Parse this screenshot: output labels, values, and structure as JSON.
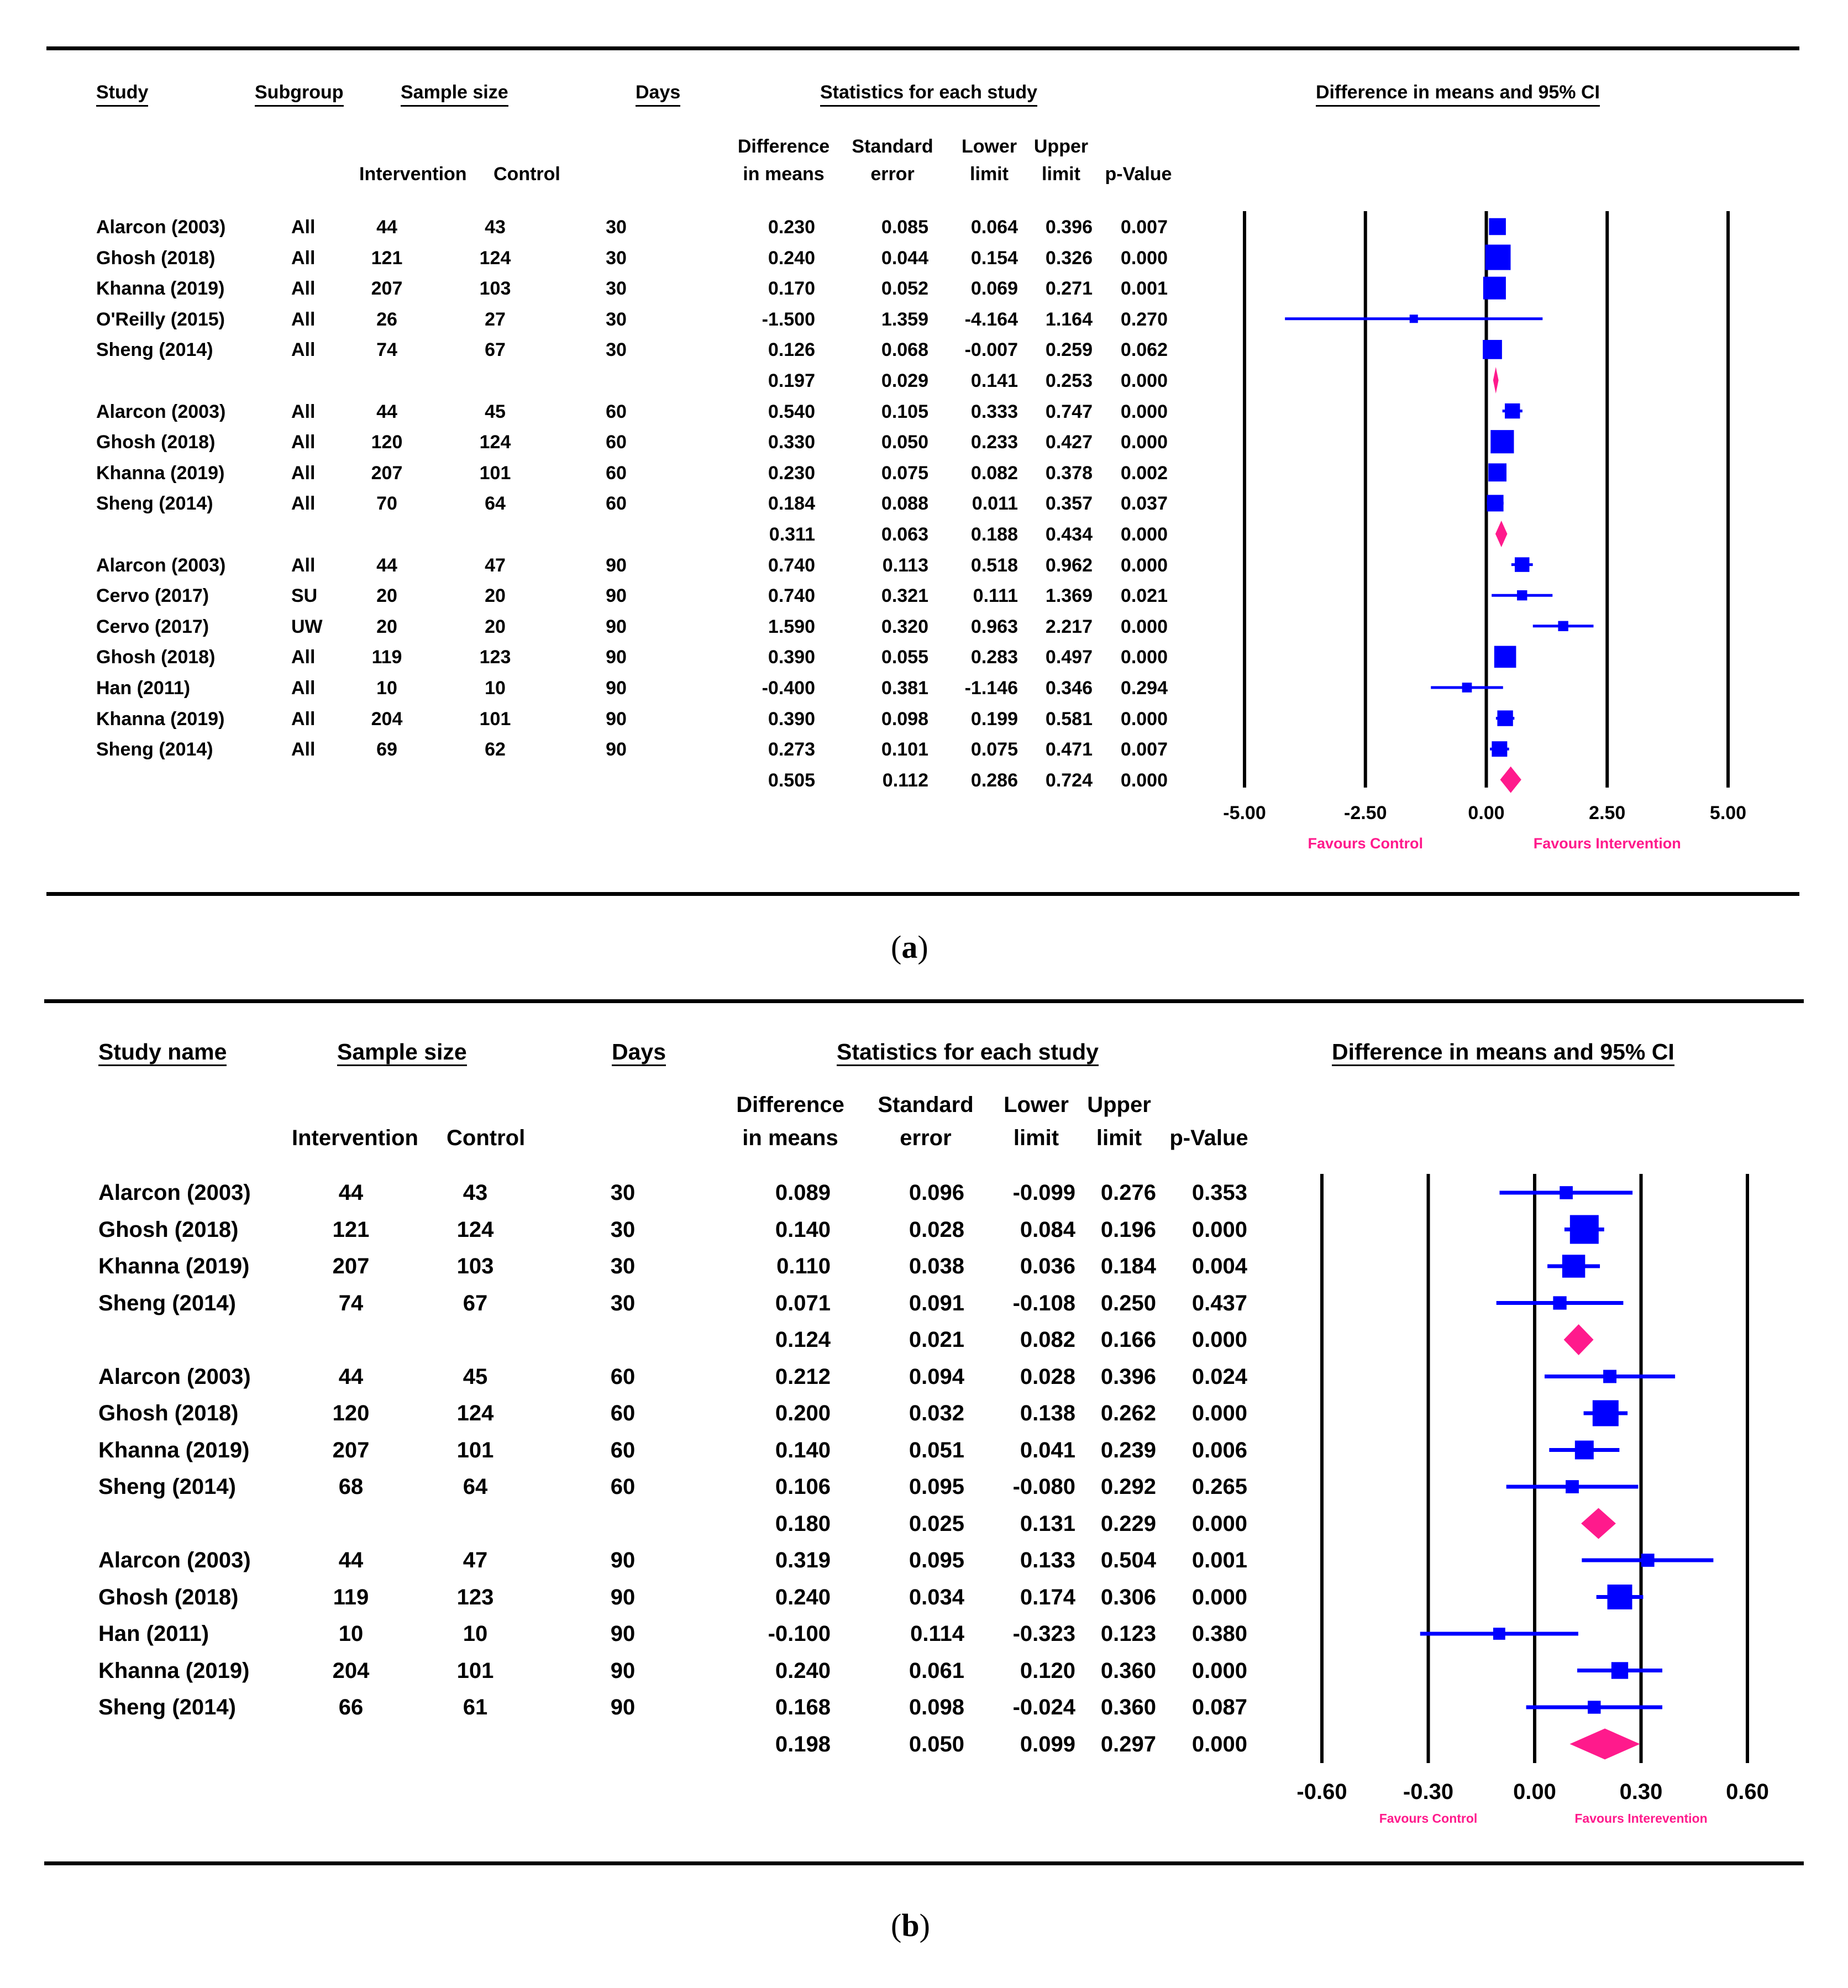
{
  "chart_data": [
    {
      "type": "forest",
      "panel": "a",
      "caption_letter": "a",
      "headers": {
        "study": "Study",
        "subgroup": "Subgroup",
        "sample_size": "Sample size",
        "days": "Days",
        "stats": "Statistics for each study",
        "plot": "Difference in means and 95% CI",
        "intervention": "Intervention",
        "control": "Control",
        "diff": [
          "Difference",
          "in means"
        ],
        "se": [
          "Standard",
          "error"
        ],
        "lower": [
          "Lower",
          "limit"
        ],
        "upper": [
          "Upper",
          "limit"
        ],
        "p": "p-Value"
      },
      "xlim": [
        -5.0,
        5.0
      ],
      "ticks": [
        "-5.00",
        "-2.50",
        "0.00",
        "2.50",
        "5.00"
      ],
      "tick_values": [
        -5.0,
        -2.5,
        0.0,
        2.5,
        5.0
      ],
      "favours_left": "Favours Control",
      "favours_right": "Favours Intervention",
      "rows": [
        {
          "study": "Alarcon (2003)",
          "subgroup": "All",
          "intervention": "44",
          "control": "43",
          "days": "30",
          "diff": "0.230",
          "se": "0.085",
          "lower": "0.064",
          "upper": "0.396",
          "p": "0.007",
          "kind": "study"
        },
        {
          "study": "Ghosh (2018)",
          "subgroup": "All",
          "intervention": "121",
          "control": "124",
          "days": "30",
          "diff": "0.240",
          "se": "0.044",
          "lower": "0.154",
          "upper": "0.326",
          "p": "0.000",
          "kind": "study"
        },
        {
          "study": "Khanna (2019)",
          "subgroup": "All",
          "intervention": "207",
          "control": "103",
          "days": "30",
          "diff": "0.170",
          "se": "0.052",
          "lower": "0.069",
          "upper": "0.271",
          "p": "0.001",
          "kind": "study"
        },
        {
          "study": "O'Reilly (2015)",
          "subgroup": "All",
          "intervention": "26",
          "control": "27",
          "days": "30",
          "diff": "-1.500",
          "se": "1.359",
          "lower": "-4.164",
          "upper": "1.164",
          "p": "0.270",
          "kind": "study"
        },
        {
          "study": "Sheng (2014)",
          "subgroup": "All",
          "intervention": "74",
          "control": "67",
          "days": "30",
          "diff": "0.126",
          "se": "0.068",
          "lower": "-0.007",
          "upper": "0.259",
          "p": "0.062",
          "kind": "study"
        },
        {
          "study": "",
          "subgroup": "",
          "intervention": "",
          "control": "",
          "days": "",
          "diff": "0.197",
          "se": "0.029",
          "lower": "0.141",
          "upper": "0.253",
          "p": "0.000",
          "kind": "pooled"
        },
        {
          "study": "Alarcon (2003)",
          "subgroup": "All",
          "intervention": "44",
          "control": "45",
          "days": "60",
          "diff": "0.540",
          "se": "0.105",
          "lower": "0.333",
          "upper": "0.747",
          "p": "0.000",
          "kind": "study"
        },
        {
          "study": "Ghosh (2018)",
          "subgroup": "All",
          "intervention": "120",
          "control": "124",
          "days": "60",
          "diff": "0.330",
          "se": "0.050",
          "lower": "0.233",
          "upper": "0.427",
          "p": "0.000",
          "kind": "study"
        },
        {
          "study": "Khanna (2019)",
          "subgroup": "All",
          "intervention": "207",
          "control": "101",
          "days": "60",
          "diff": "0.230",
          "se": "0.075",
          "lower": "0.082",
          "upper": "0.378",
          "p": "0.002",
          "kind": "study"
        },
        {
          "study": "Sheng (2014)",
          "subgroup": "All",
          "intervention": "70",
          "control": "64",
          "days": "60",
          "diff": "0.184",
          "se": "0.088",
          "lower": "0.011",
          "upper": "0.357",
          "p": "0.037",
          "kind": "study"
        },
        {
          "study": "",
          "subgroup": "",
          "intervention": "",
          "control": "",
          "days": "",
          "diff": "0.311",
          "se": "0.063",
          "lower": "0.188",
          "upper": "0.434",
          "p": "0.000",
          "kind": "pooled"
        },
        {
          "study": "Alarcon (2003)",
          "subgroup": "All",
          "intervention": "44",
          "control": "47",
          "days": "90",
          "diff": "0.740",
          "se": "0.113",
          "lower": "0.518",
          "upper": "0.962",
          "p": "0.000",
          "kind": "study"
        },
        {
          "study": "Cervo (2017)",
          "subgroup": "SU",
          "intervention": "20",
          "control": "20",
          "days": "90",
          "diff": "0.740",
          "se": "0.321",
          "lower": "0.111",
          "upper": "1.369",
          "p": "0.021",
          "kind": "study"
        },
        {
          "study": "Cervo (2017)",
          "subgroup": "UW",
          "intervention": "20",
          "control": "20",
          "days": "90",
          "diff": "1.590",
          "se": "0.320",
          "lower": "0.963",
          "upper": "2.217",
          "p": "0.000",
          "kind": "study"
        },
        {
          "study": "Ghosh (2018)",
          "subgroup": "All",
          "intervention": "119",
          "control": "123",
          "days": "90",
          "diff": "0.390",
          "se": "0.055",
          "lower": "0.283",
          "upper": "0.497",
          "p": "0.000",
          "kind": "study"
        },
        {
          "study": "Han (2011)",
          "subgroup": "All",
          "intervention": "10",
          "control": "10",
          "days": "90",
          "diff": "-0.400",
          "se": "0.381",
          "lower": "-1.146",
          "upper": "0.346",
          "p": "0.294",
          "kind": "study"
        },
        {
          "study": "Khanna (2019)",
          "subgroup": "All",
          "intervention": "204",
          "control": "101",
          "days": "90",
          "diff": "0.390",
          "se": "0.098",
          "lower": "0.199",
          "upper": "0.581",
          "p": "0.000",
          "kind": "study"
        },
        {
          "study": "Sheng (2014)",
          "subgroup": "All",
          "intervention": "69",
          "control": "62",
          "days": "90",
          "diff": "0.273",
          "se": "0.101",
          "lower": "0.075",
          "upper": "0.471",
          "p": "0.007",
          "kind": "study"
        },
        {
          "study": "",
          "subgroup": "",
          "intervention": "",
          "control": "",
          "days": "",
          "diff": "0.505",
          "se": "0.112",
          "lower": "0.286",
          "upper": "0.724",
          "p": "0.000",
          "kind": "pooled"
        }
      ]
    },
    {
      "type": "forest",
      "panel": "b",
      "caption_letter": "b",
      "headers": {
        "study": "Study name",
        "sample_size": "Sample size",
        "days": "Days",
        "stats": "Statistics for each study",
        "plot": "Difference in means and 95% CI",
        "intervention": "Intervention",
        "control": "Control",
        "diff": [
          "Difference",
          "in means"
        ],
        "se": [
          "Standard",
          "error"
        ],
        "lower": [
          "Lower",
          "limit"
        ],
        "upper": [
          "Upper",
          "limit"
        ],
        "p": "p-Value"
      },
      "xlim": [
        -0.6,
        0.6
      ],
      "ticks": [
        "-0.60",
        "-0.30",
        "0.00",
        "0.30",
        "0.60"
      ],
      "tick_values": [
        -0.6,
        -0.3,
        0.0,
        0.3,
        0.6
      ],
      "favours_left": "Favours Control",
      "favours_right": "Favours Interevention",
      "rows": [
        {
          "study": "Alarcon (2003)",
          "intervention": "44",
          "control": "43",
          "days": "30",
          "diff": "0.089",
          "se": "0.096",
          "lower": "-0.099",
          "upper": "0.276",
          "p": "0.353",
          "kind": "study"
        },
        {
          "study": "Ghosh (2018)",
          "intervention": "121",
          "control": "124",
          "days": "30",
          "diff": "0.140",
          "se": "0.028",
          "lower": "0.084",
          "upper": "0.196",
          "p": "0.000",
          "kind": "study"
        },
        {
          "study": "Khanna (2019)",
          "intervention": "207",
          "control": "103",
          "days": "30",
          "diff": "0.110",
          "se": "0.038",
          "lower": "0.036",
          "upper": "0.184",
          "p": "0.004",
          "kind": "study"
        },
        {
          "study": "Sheng (2014)",
          "intervention": "74",
          "control": "67",
          "days": "30",
          "diff": "0.071",
          "se": "0.091",
          "lower": "-0.108",
          "upper": "0.250",
          "p": "0.437",
          "kind": "study"
        },
        {
          "study": "",
          "intervention": "",
          "control": "",
          "days": "",
          "diff": "0.124",
          "se": "0.021",
          "lower": "0.082",
          "upper": "0.166",
          "p": "0.000",
          "kind": "pooled"
        },
        {
          "study": "Alarcon (2003)",
          "intervention": "44",
          "control": "45",
          "days": "60",
          "diff": "0.212",
          "se": "0.094",
          "lower": "0.028",
          "upper": "0.396",
          "p": "0.024",
          "kind": "study"
        },
        {
          "study": "Ghosh (2018)",
          "intervention": "120",
          "control": "124",
          "days": "60",
          "diff": "0.200",
          "se": "0.032",
          "lower": "0.138",
          "upper": "0.262",
          "p": "0.000",
          "kind": "study"
        },
        {
          "study": "Khanna (2019)",
          "intervention": "207",
          "control": "101",
          "days": "60",
          "diff": "0.140",
          "se": "0.051",
          "lower": "0.041",
          "upper": "0.239",
          "p": "0.006",
          "kind": "study"
        },
        {
          "study": "Sheng (2014)",
          "intervention": "68",
          "control": "64",
          "days": "60",
          "diff": "0.106",
          "se": "0.095",
          "lower": "-0.080",
          "upper": "0.292",
          "p": "0.265",
          "kind": "study"
        },
        {
          "study": "",
          "intervention": "",
          "control": "",
          "days": "",
          "diff": "0.180",
          "se": "0.025",
          "lower": "0.131",
          "upper": "0.229",
          "p": "0.000",
          "kind": "pooled"
        },
        {
          "study": "Alarcon (2003)",
          "intervention": "44",
          "control": "47",
          "days": "90",
          "diff": "0.319",
          "se": "0.095",
          "lower": "0.133",
          "upper": "0.504",
          "p": "0.001",
          "kind": "study"
        },
        {
          "study": "Ghosh (2018)",
          "intervention": "119",
          "control": "123",
          "days": "90",
          "diff": "0.240",
          "se": "0.034",
          "lower": "0.174",
          "upper": "0.306",
          "p": "0.000",
          "kind": "study"
        },
        {
          "study": "Han (2011)",
          "intervention": "10",
          "control": "10",
          "days": "90",
          "diff": "-0.100",
          "se": "0.114",
          "lower": "-0.323",
          "upper": "0.123",
          "p": "0.380",
          "kind": "study"
        },
        {
          "study": "Khanna (2019)",
          "intervention": "204",
          "control": "101",
          "days": "90",
          "diff": "0.240",
          "se": "0.061",
          "lower": "0.120",
          "upper": "0.360",
          "p": "0.000",
          "kind": "study"
        },
        {
          "study": "Sheng (2014)",
          "intervention": "66",
          "control": "61",
          "days": "90",
          "diff": "0.168",
          "se": "0.098",
          "lower": "-0.024",
          "upper": "0.360",
          "p": "0.087",
          "kind": "study"
        },
        {
          "study": "",
          "intervention": "",
          "control": "",
          "days": "",
          "diff": "0.198",
          "se": "0.050",
          "lower": "0.099",
          "upper": "0.297",
          "p": "0.000",
          "kind": "pooled"
        }
      ]
    }
  ],
  "colors": {
    "study_marker": "#0000ff",
    "pooled_marker": "#ff1a8c",
    "favours_text": "#ff1a8c"
  }
}
